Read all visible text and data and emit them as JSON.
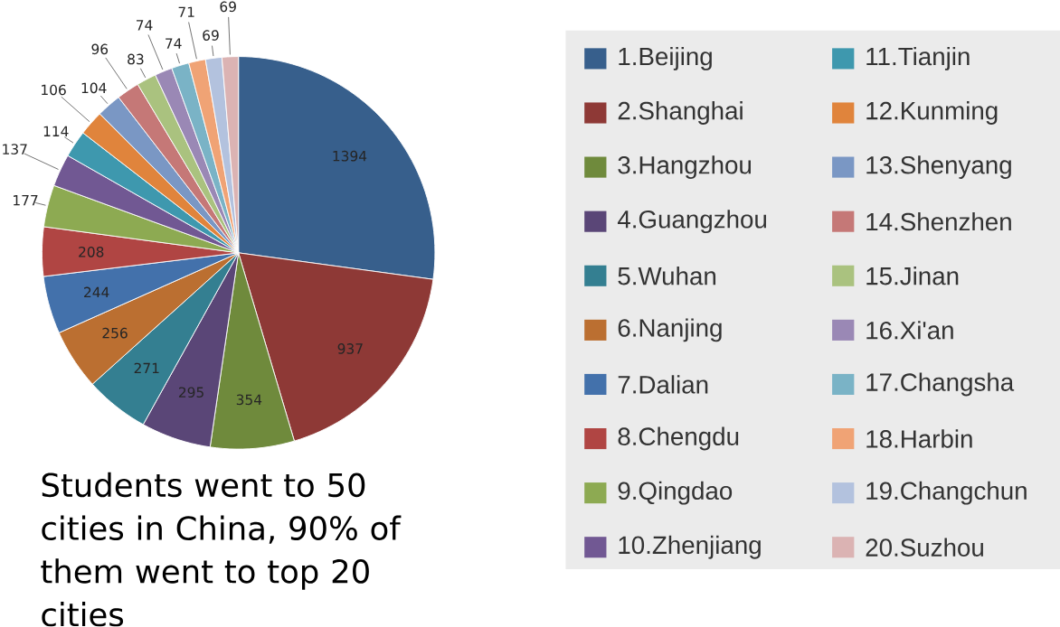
{
  "chart_data": {
    "type": "pie",
    "categories": [
      "1.Beijing",
      "2.Shanghai",
      "3.Hangzhou",
      "4.Guangzhou",
      "5.Wuhan",
      "6.Nanjing",
      "7.Dalian",
      "8.Chengdu",
      "9.Qingdao",
      "10.Zhenjiang",
      "11.Tianjin",
      "12.Kunming",
      "13.Shenyang",
      "14.Shenzhen",
      "15.Jinan",
      "16.Xi'an",
      "17.Changsha",
      "18.Harbin",
      "19.Changchun",
      "20.Suzhou"
    ],
    "values": [
      1394,
      937,
      354,
      295,
      271,
      256,
      244,
      208,
      177,
      137,
      114,
      106,
      104,
      96,
      83,
      74,
      74,
      71,
      69,
      69
    ],
    "colors": [
      "#375f8c",
      "#8e3936",
      "#6f8a3c",
      "#5a4677",
      "#347f91",
      "#bb6f31",
      "#4371ab",
      "#b04543",
      "#8daa52",
      "#715893",
      "#3e98ae",
      "#e0843c",
      "#7a97c4",
      "#c57877",
      "#aac27f",
      "#9a88b5",
      "#7ab3c6",
      "#f0a375",
      "#b3c2de",
      "#dbb3b3"
    ],
    "data_labels": true,
    "legend": "right",
    "annotations": [
      "Students went to 50 cities in China, 90% of them went to top 20 cities"
    ]
  }
}
